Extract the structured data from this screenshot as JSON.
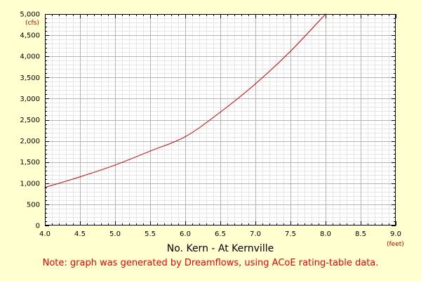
{
  "chart_data": {
    "type": "line",
    "title": "No. Kern - At Kernville",
    "xlabel": "(feet)",
    "ylabel": "(cfs)",
    "note": "Note: graph was generated by Dreamflows, using ACoE rating-table data.",
    "xlim": [
      4.0,
      9.0
    ],
    "ylim": [
      0,
      5000
    ],
    "x_ticks": [
      "4.0",
      "4.5",
      "5.0",
      "5.5",
      "6.0",
      "6.5",
      "7.0",
      "7.5",
      "8.0",
      "8.5",
      "9.0"
    ],
    "y_ticks": [
      "0",
      "500",
      "1,000",
      "1,500",
      "2,000",
      "2,500",
      "3,000",
      "3,500",
      "4,000",
      "4,500",
      "5,000"
    ],
    "grid": true,
    "series": [
      {
        "color": "#cc0000",
        "x": [
          4.0,
          4.5,
          5.0,
          5.5,
          6.0,
          6.5,
          7.0,
          7.5,
          8.0
        ],
        "y": [
          900,
          1150,
          1430,
          1760,
          2100,
          2680,
          3350,
          4120,
          5000
        ]
      }
    ]
  },
  "colors": {
    "background": "#ffffd0",
    "plot_background": "#ffffff",
    "grid_major": "#b4b4b4",
    "grid_minor": "#e6e6e6",
    "line": "#cc0000"
  }
}
